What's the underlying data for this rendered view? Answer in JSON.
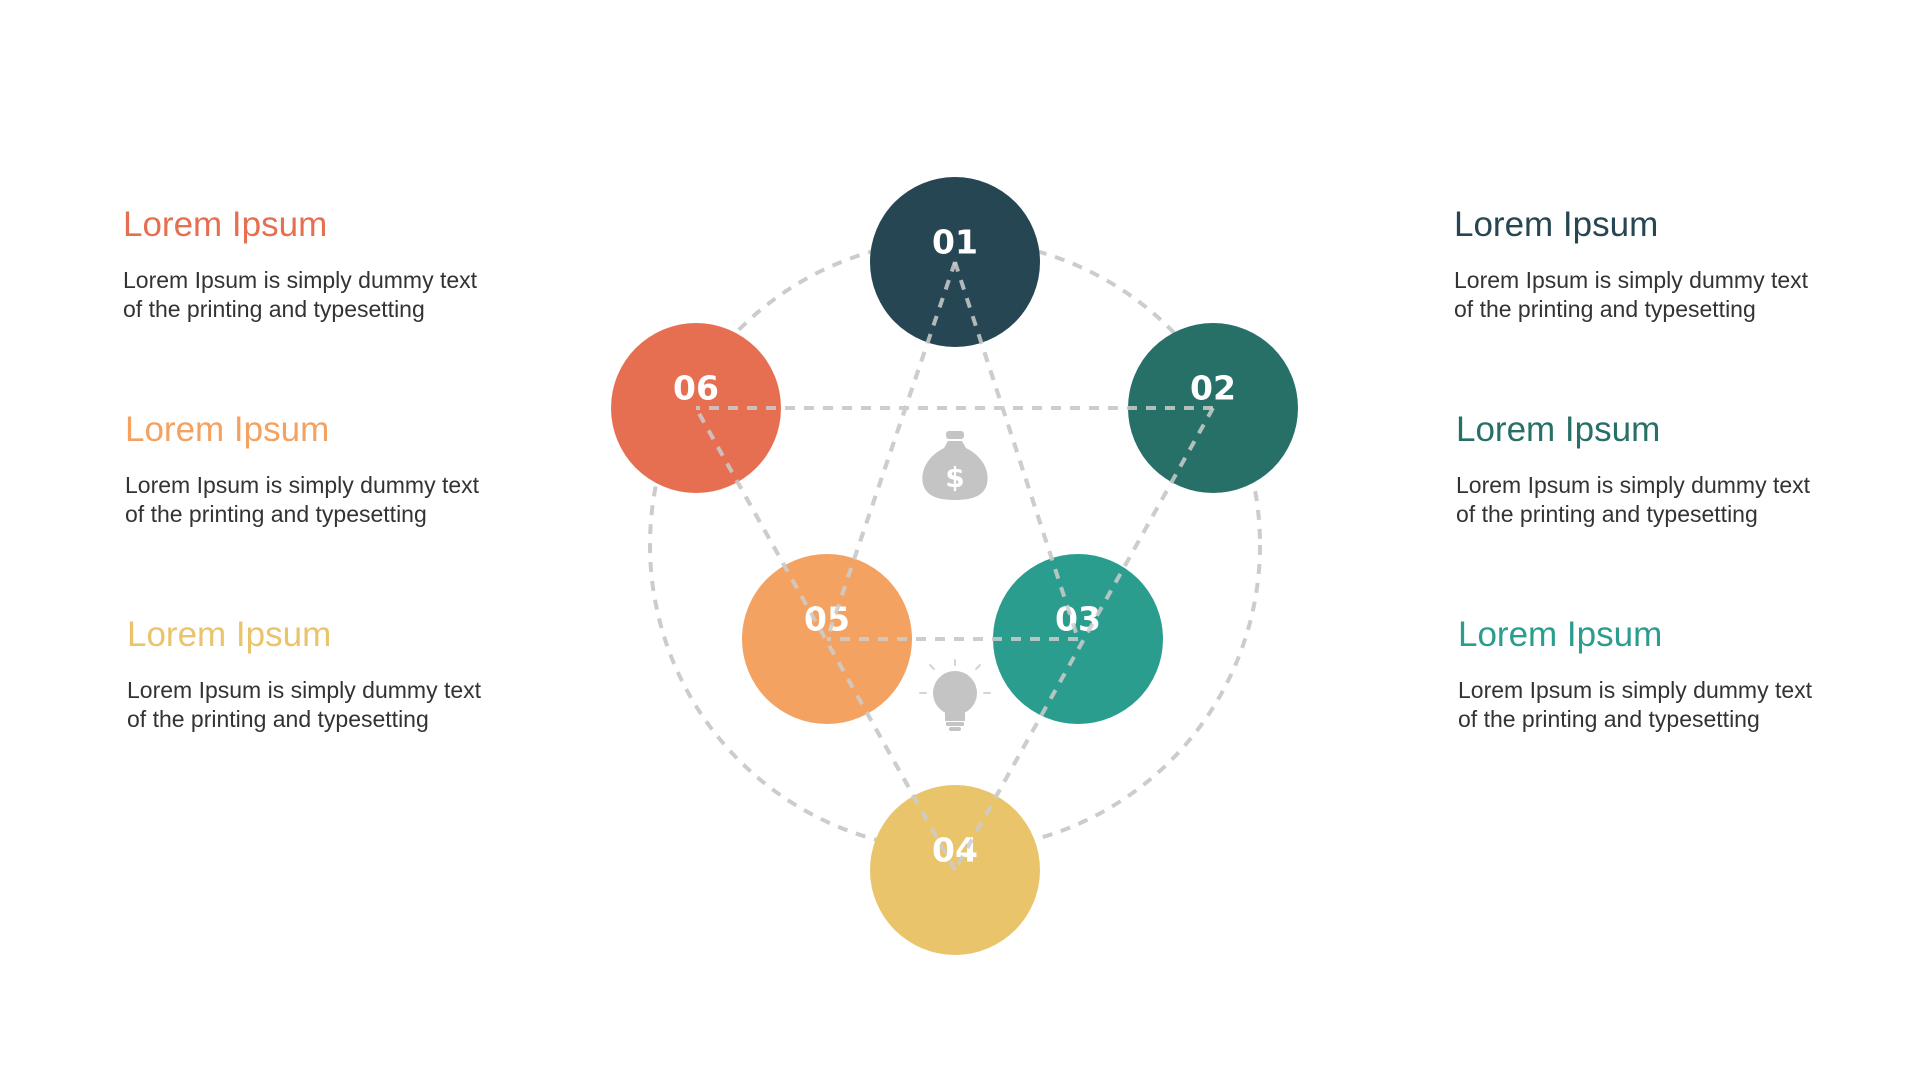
{
  "colors": {
    "navy": "#264653",
    "dark_teal": "#277068",
    "teal": "#2A9D8F",
    "yellow": "#E9C46A",
    "orange": "#F4A261",
    "red_orange": "#E76F51",
    "dashed_line": "#cccccc",
    "icon_gray": "#c4c4c4"
  },
  "diagram": {
    "nodes": [
      {
        "label": "01",
        "color": "#264653"
      },
      {
        "label": "02",
        "color": "#277068"
      },
      {
        "label": "03",
        "color": "#2A9D8F"
      },
      {
        "label": "04",
        "color": "#E9C46A"
      },
      {
        "label": "05",
        "color": "#F4A261"
      },
      {
        "label": "06",
        "color": "#E76F51"
      }
    ],
    "icons": [
      "money-bag-icon",
      "lightbulb-icon"
    ]
  },
  "left_blocks": [
    {
      "title": "Lorem Ipsum",
      "line1": "Lorem Ipsum is simply dummy text",
      "line2": "of the printing and typesetting",
      "color": "#E76F51"
    },
    {
      "title": "Lorem Ipsum",
      "line1": "Lorem Ipsum is simply dummy text",
      "line2": "of the printing and typesetting",
      "color": "#F4A261"
    },
    {
      "title": "Lorem Ipsum",
      "line1": "Lorem Ipsum is simply dummy text",
      "line2": "of the printing and typesetting",
      "color": "#E9C46A"
    }
  ],
  "right_blocks": [
    {
      "title": "Lorem Ipsum",
      "line1": "Lorem Ipsum is simply dummy text",
      "line2": "of the printing and typesetting",
      "color": "#264653"
    },
    {
      "title": "Lorem Ipsum",
      "line1": "Lorem Ipsum is simply dummy text",
      "line2": "of the printing and typesetting",
      "color": "#277068"
    },
    {
      "title": "Lorem Ipsum",
      "line1": "Lorem Ipsum is simply dummy text",
      "line2": "of the printing and typesetting",
      "color": "#2A9D8F"
    }
  ]
}
